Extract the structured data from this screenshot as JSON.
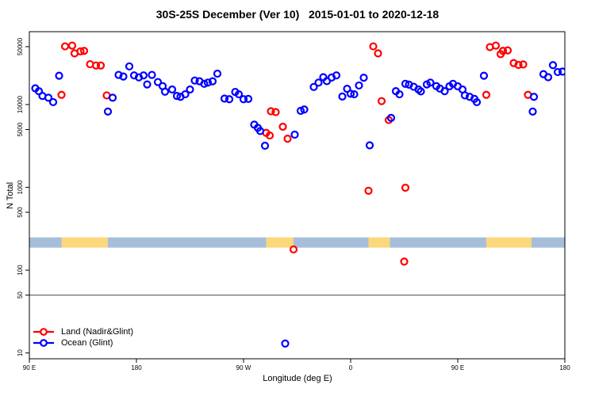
{
  "title": "30S-25S December (Ver 10)   2015-01-01 to 2020-12-18",
  "axes": {
    "x_label": "Longitude (deg E)",
    "y_label": "N Total"
  },
  "legend": {
    "items": [
      {
        "label": "Land (Nadir&Glint)",
        "color": "#ff0000"
      },
      {
        "label": "Ocean (Glint)",
        "color": "#0000ff"
      }
    ]
  },
  "chart_data": {
    "type": "scatter",
    "title": "30S-25S December (Ver 10)   2015-01-01 to 2020-12-18",
    "xlabel": "Longitude (deg E)",
    "ylabel": "N Total",
    "x_axis": {
      "range": [
        90,
        540
      ],
      "ticks": [
        {
          "value": 90,
          "label": "90 E"
        },
        {
          "value": 180,
          "label": "180"
        },
        {
          "value": 270,
          "label": "90 W"
        },
        {
          "value": 360,
          "label": "0"
        },
        {
          "value": 450,
          "label": "90 E"
        },
        {
          "value": 540,
          "label": "180"
        }
      ]
    },
    "y_axis": {
      "scale": "log10",
      "range": [
        9,
        76000
      ],
      "ticks": [
        10,
        50,
        100,
        500,
        1000,
        5000,
        10000,
        50000
      ]
    },
    "reference_line_y": 50,
    "reference_line_color": "#4d4d4d",
    "land_ocean_band": {
      "y_range": [
        187,
        249
      ],
      "land_color": "#fcd87c",
      "ocean_color": "#a7bedb",
      "segments": [
        {
          "surface": "ocean",
          "from": 90,
          "to": 117
        },
        {
          "surface": "land",
          "from": 117,
          "to": 156
        },
        {
          "surface": "ocean",
          "from": 156,
          "to": 289
        },
        {
          "surface": "land",
          "from": 289,
          "to": 312
        },
        {
          "surface": "ocean",
          "from": 312,
          "to": 375
        },
        {
          "surface": "land",
          "from": 375,
          "to": 393
        },
        {
          "surface": "ocean",
          "from": 393,
          "to": 474
        },
        {
          "surface": "land",
          "from": 474,
          "to": 512
        },
        {
          "surface": "ocean",
          "from": 512,
          "to": 540
        }
      ]
    },
    "series": [
      {
        "name": "Land (Nadir&Glint)",
        "color": "#ff0000",
        "marker": "open-circle",
        "points": [
          [
            117,
            13100
          ],
          [
            120,
            50400
          ],
          [
            126,
            51500
          ],
          [
            128,
            41500
          ],
          [
            133,
            43900
          ],
          [
            136,
            44500
          ],
          [
            141,
            30700
          ],
          [
            146,
            29600
          ],
          [
            150,
            29600
          ],
          [
            155,
            12900
          ],
          [
            289,
            4550
          ],
          [
            292,
            4230
          ],
          [
            293,
            8290
          ],
          [
            297,
            8110
          ],
          [
            303,
            5400
          ],
          [
            307,
            3870
          ],
          [
            312,
            178
          ],
          [
            375,
            910
          ],
          [
            379,
            50400
          ],
          [
            383,
            41500
          ],
          [
            386,
            11000
          ],
          [
            392,
            6500
          ],
          [
            405,
            127
          ],
          [
            406,
            990
          ],
          [
            474,
            13100
          ],
          [
            477,
            49400
          ],
          [
            482,
            51500
          ],
          [
            486,
            40600
          ],
          [
            488,
            44500
          ],
          [
            492,
            45100
          ],
          [
            497,
            31700
          ],
          [
            501,
            30100
          ],
          [
            505,
            30500
          ],
          [
            509,
            13100
          ]
        ]
      },
      {
        "name": "Ocean (Glint)",
        "color": "#0000ff",
        "marker": "open-circle",
        "points": [
          [
            95,
            15700
          ],
          [
            98,
            14500
          ],
          [
            101,
            12700
          ],
          [
            106,
            12100
          ],
          [
            110,
            10700
          ],
          [
            115,
            22300
          ],
          [
            156,
            8230
          ],
          [
            160,
            12100
          ],
          [
            165,
            22800
          ],
          [
            169,
            21800
          ],
          [
            174,
            28900
          ],
          [
            178,
            22500
          ],
          [
            182,
            21300
          ],
          [
            186,
            22500
          ],
          [
            189,
            17500
          ],
          [
            193,
            22800
          ],
          [
            198,
            18700
          ],
          [
            202,
            16700
          ],
          [
            204,
            14300
          ],
          [
            210,
            15200
          ],
          [
            214,
            12700
          ],
          [
            217,
            12400
          ],
          [
            221,
            13300
          ],
          [
            225,
            15200
          ],
          [
            229,
            19500
          ],
          [
            233,
            19100
          ],
          [
            237,
            17800
          ],
          [
            240,
            18400
          ],
          [
            244,
            19100
          ],
          [
            248,
            23600
          ],
          [
            254,
            11800
          ],
          [
            258,
            11600
          ],
          [
            263,
            14200
          ],
          [
            266,
            13300
          ],
          [
            270,
            11600
          ],
          [
            274,
            11700
          ],
          [
            279,
            5720
          ],
          [
            282,
            5230
          ],
          [
            284,
            4790
          ],
          [
            288,
            3180
          ],
          [
            305,
            13
          ],
          [
            313,
            4330
          ],
          [
            318,
            8400
          ],
          [
            321,
            8710
          ],
          [
            329,
            16300
          ],
          [
            333,
            18400
          ],
          [
            337,
            21400
          ],
          [
            340,
            19200
          ],
          [
            344,
            21200
          ],
          [
            348,
            22500
          ],
          [
            353,
            12500
          ],
          [
            357,
            15500
          ],
          [
            360,
            13500
          ],
          [
            363,
            13300
          ],
          [
            367,
            17000
          ],
          [
            371,
            21100
          ],
          [
            376,
            3220
          ],
          [
            394,
            6900
          ],
          [
            398,
            14500
          ],
          [
            401,
            13300
          ],
          [
            406,
            17800
          ],
          [
            409,
            17400
          ],
          [
            413,
            16400
          ],
          [
            417,
            15200
          ],
          [
            419,
            14400
          ],
          [
            424,
            17500
          ],
          [
            427,
            18400
          ],
          [
            432,
            16700
          ],
          [
            435,
            15600
          ],
          [
            439,
            14500
          ],
          [
            443,
            16600
          ],
          [
            446,
            17800
          ],
          [
            450,
            16600
          ],
          [
            454,
            15200
          ],
          [
            456,
            12900
          ],
          [
            460,
            12400
          ],
          [
            464,
            11700
          ],
          [
            466,
            10700
          ],
          [
            472,
            22300
          ],
          [
            513,
            8230
          ],
          [
            514,
            12400
          ],
          [
            522,
            23300
          ],
          [
            526,
            21400
          ],
          [
            530,
            29900
          ],
          [
            534,
            24700
          ],
          [
            538,
            25000
          ]
        ]
      }
    ]
  }
}
